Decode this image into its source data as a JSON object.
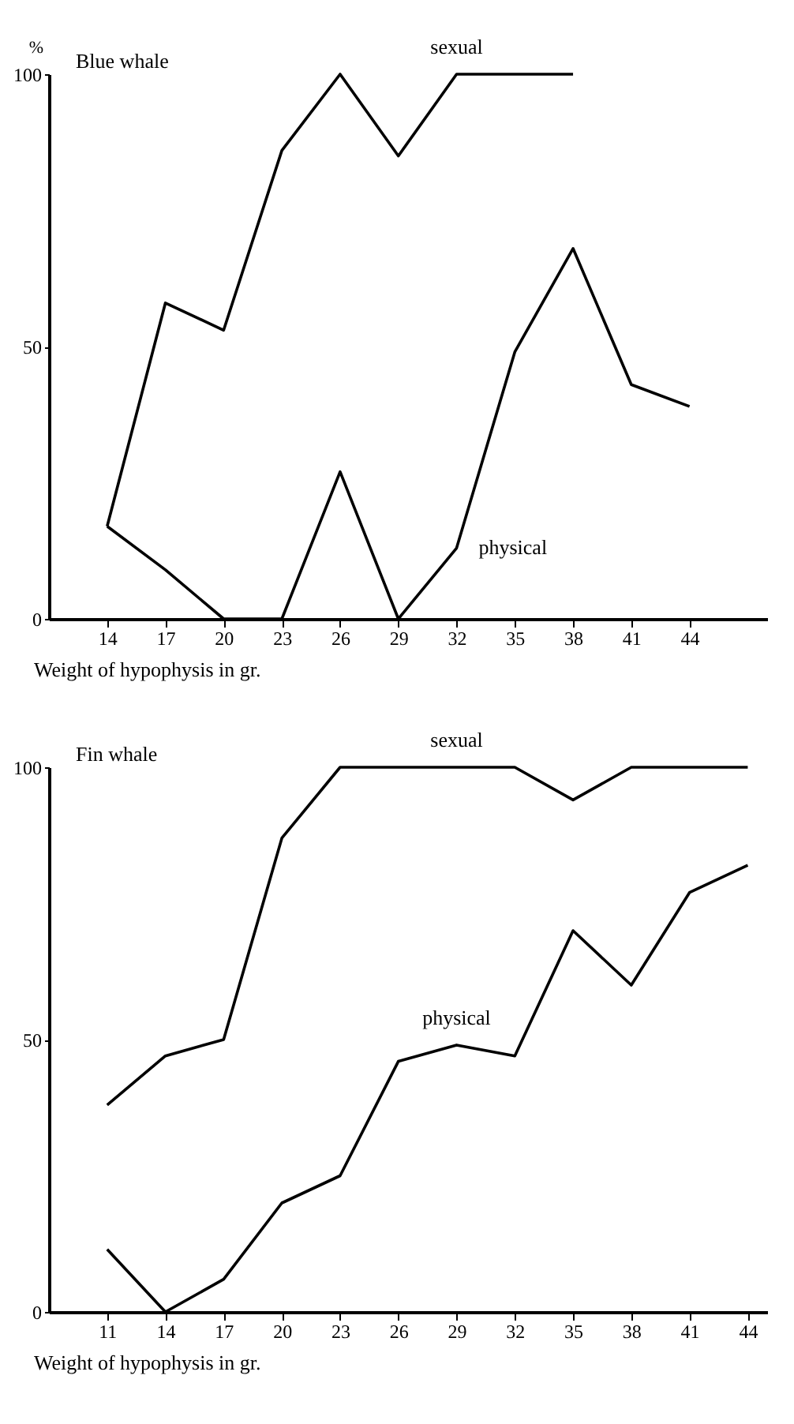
{
  "chart_data": [
    {
      "type": "line",
      "title": "Blue whale",
      "xlabel": "Weight of hypophysis in gr.",
      "ylabel": "%",
      "x": [
        14,
        17,
        20,
        23,
        26,
        29,
        32,
        35,
        38,
        41,
        44
      ],
      "xlim": [
        11,
        48
      ],
      "xticks": [
        14,
        17,
        20,
        23,
        26,
        29,
        32,
        35,
        38,
        41,
        44
      ],
      "ylim": [
        0,
        100
      ],
      "yticks": [
        0,
        50,
        100
      ],
      "series": [
        {
          "name": "sexual",
          "color": "#000000",
          "values": [
            17,
            58,
            53,
            86,
            100,
            85,
            100,
            100,
            100,
            null,
            null
          ]
        },
        {
          "name": "physical",
          "color": "#000000",
          "values": [
            17,
            9,
            0,
            0,
            27,
            0,
            13,
            49,
            68,
            43,
            39
          ]
        }
      ]
    },
    {
      "type": "line",
      "title": "Fin whale",
      "xlabel": "Weight of hypophysis in gr.",
      "x": [
        11,
        14,
        17,
        20,
        23,
        26,
        29,
        32,
        35,
        38,
        41,
        44
      ],
      "xlim": [
        8,
        45
      ],
      "xticks": [
        11,
        14,
        17,
        20,
        23,
        26,
        29,
        32,
        35,
        38,
        41,
        44
      ],
      "ylim": [
        0,
        100
      ],
      "yticks": [
        0,
        50,
        100
      ],
      "series": [
        {
          "name": "sexual",
          "color": "#000000",
          "values": [
            38,
            47,
            50,
            87,
            100,
            100,
            100,
            100,
            94,
            100,
            100,
            100
          ]
        },
        {
          "name": "physical",
          "color": "#000000",
          "values": [
            11.5,
            0,
            6,
            20,
            25,
            46,
            49,
            47,
            70,
            60,
            77,
            82
          ]
        }
      ]
    }
  ]
}
